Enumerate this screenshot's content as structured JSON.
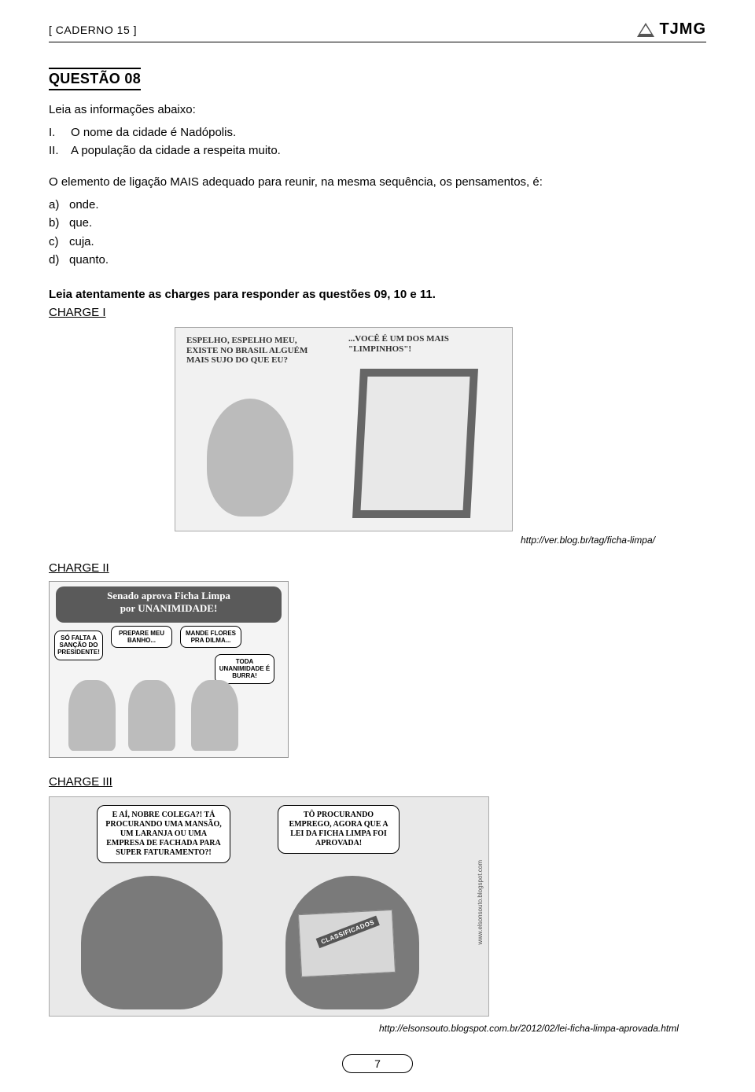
{
  "header": {
    "caderno": "[ CADERNO 15 ]",
    "org": "TJMG"
  },
  "question": {
    "title": "QUESTÃO 08",
    "lead": "Leia as informações abaixo:",
    "infos": [
      {
        "num": "I.",
        "text": "O nome da cidade é Nadópolis."
      },
      {
        "num": "II.",
        "text": "A população da cidade a respeita muito."
      }
    ],
    "stem": "O elemento de ligação MAIS adequado para reunir, na mesma sequência, os pensamentos, é:",
    "options": [
      {
        "letter": "a)",
        "text": "onde."
      },
      {
        "letter": "b)",
        "text": "que."
      },
      {
        "letter": "c)",
        "text": "cuja."
      },
      {
        "letter": "d)",
        "text": "quanto."
      }
    ]
  },
  "instruction": "Leia atentamente as charges para responder as questões 09, 10 e 11.",
  "charge1": {
    "heading": "CHARGE I",
    "text1": "ESPELHO, ESPELHO MEU, EXISTE NO BRASIL ALGUÉM MAIS SUJO DO QUE EU?",
    "text2": "...VOCÊ É UM DOS MAIS \"LIMPINHOS\"!",
    "credit": "http://ver.blog.br/tag/ficha-limpa/"
  },
  "charge2": {
    "heading": "CHARGE II",
    "banner_line1": "Senado aprova Ficha Limpa",
    "banner_line2": "por UNANIMIDADE!",
    "b1": "SÓ FALTA A SANÇÃO DO PRESIDENTE!",
    "b2": "PREPARE MEU BANHO...",
    "b3": "MANDE FLORES PRA DILMA...",
    "b4": "TODA UNANIMIDADE É BURRA!"
  },
  "charge3": {
    "heading": "CHARGE III",
    "bubble_left": "E AÍ, NOBRE COLEGA?! TÁ PROCURANDO UMA MANSÃO, UM LARANJA OU UMA EMPRESA DE FACHADA PARA SUPER FATURAMENTO?!",
    "bubble_right": "TÔ PROCURANDO EMPREGO, AGORA QUE A LEI DA FICHA LIMPA FOI APROVADA!",
    "newspaper_label": "CLASSIFICADOS",
    "side_credit": "www.elsonsouto.blogspot.com",
    "credit": "http://elsonsouto.blogspot.com.br/2012/02/lei-ficha-limpa-aprovada.html"
  },
  "page_number": "7"
}
